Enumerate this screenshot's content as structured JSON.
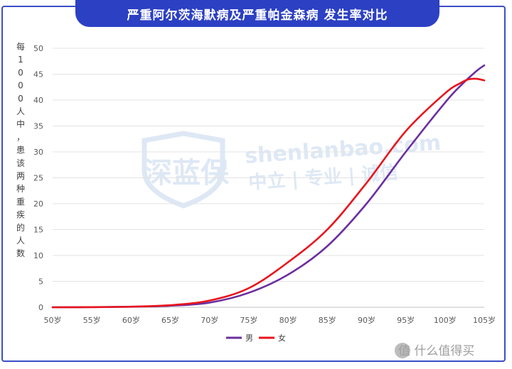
{
  "colors": {
    "frame": "#3a4ec8",
    "title_bg": "#2c40c4",
    "male": "#6b2fa0",
    "female": "#e8141c",
    "grid": "#e3e3e3",
    "tick": "#595959",
    "watermark": "#dbe6f4"
  },
  "watermark": {
    "logo_text": "深蓝保",
    "site": "shenlanbao.com",
    "slogan": "中立 | 专业 | 诚信",
    "corner_brand": "值 什么值得买"
  },
  "chart_data": {
    "type": "line",
    "title": "严重阿尔茨海默病及严重帕金森病 发生率对比",
    "ylabel": "每1000人中，患该两种重疾的人数",
    "ylabel_chars": [
      "每",
      "1",
      "0",
      "0",
      "0",
      "人",
      "中",
      "，",
      "患",
      "该",
      "两",
      "种",
      "重",
      "疾",
      "的",
      "人",
      "数"
    ],
    "xlabel": "",
    "ylim": [
      0,
      50
    ],
    "xlim": [
      50,
      105
    ],
    "yticks": [
      0,
      5,
      10,
      15,
      20,
      25,
      30,
      35,
      40,
      45,
      50
    ],
    "xticks": [
      50,
      55,
      60,
      65,
      70,
      75,
      80,
      85,
      90,
      95,
      100,
      105
    ],
    "xtick_labels": [
      "50岁",
      "55岁",
      "60岁",
      "65岁",
      "70岁",
      "75岁",
      "80岁",
      "85岁",
      "90岁",
      "95岁",
      "100岁",
      "105岁"
    ],
    "grid": true,
    "legend": "bottom-center",
    "series": [
      {
        "name": "男",
        "color": "#6b2fa0",
        "x": [
          50,
          55,
          60,
          65,
          70,
          75,
          80,
          85,
          90,
          95,
          100,
          102,
          104,
          105
        ],
        "y": [
          0,
          0.02,
          0.1,
          0.3,
          0.9,
          2.8,
          6.3,
          11.8,
          20.0,
          30.0,
          39.5,
          42.8,
          45.6,
          46.7
        ]
      },
      {
        "name": "女",
        "color": "#e8141c",
        "x": [
          50,
          55,
          60,
          65,
          70,
          75,
          80,
          85,
          90,
          95,
          100,
          102,
          103,
          104,
          105
        ],
        "y": [
          0,
          0.02,
          0.12,
          0.4,
          1.3,
          3.7,
          8.7,
          15.0,
          24.0,
          34.0,
          41.3,
          43.3,
          44.0,
          44.1,
          43.8
        ]
      }
    ]
  }
}
